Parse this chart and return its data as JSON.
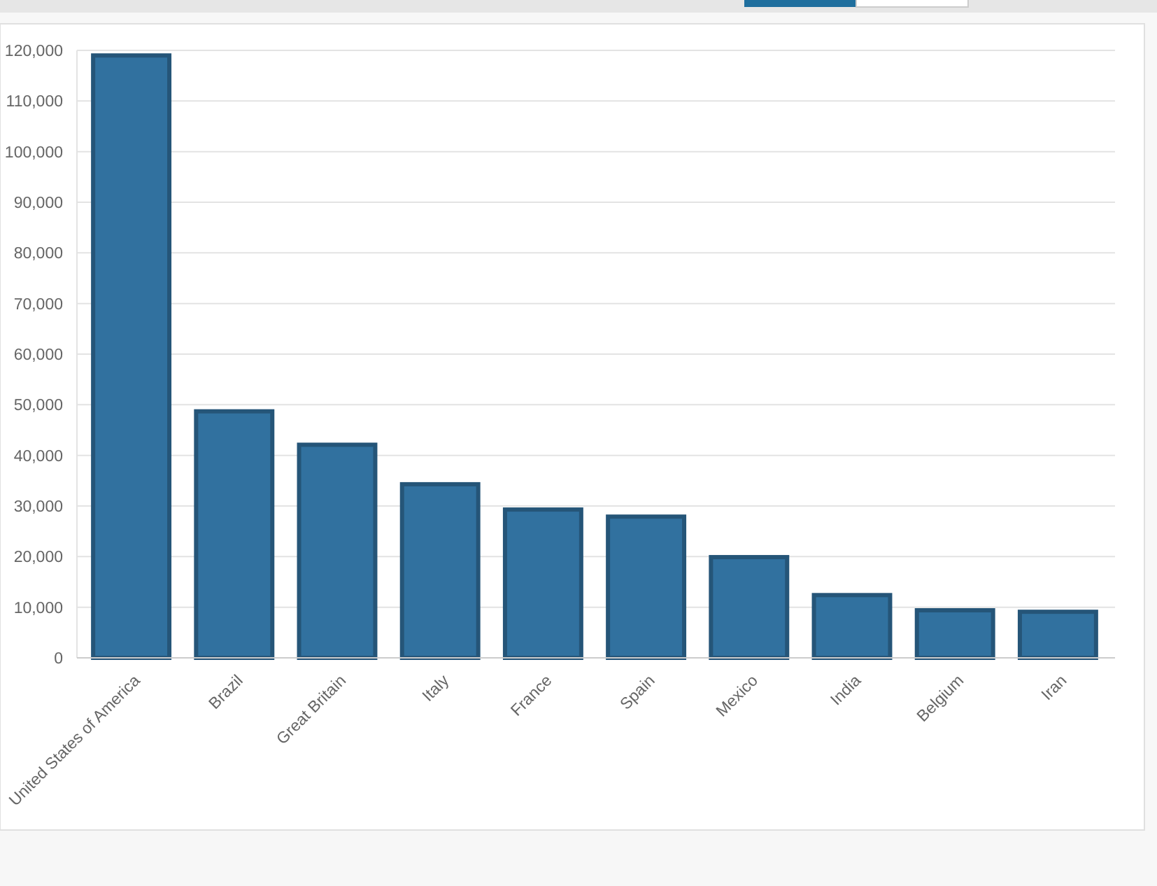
{
  "chart_data": {
    "type": "bar",
    "categories": [
      "United States of America",
      "Brazil",
      "Great Britain",
      "Italy",
      "France",
      "Spain",
      "Mexico",
      "India",
      "Belgium",
      "Iran"
    ],
    "values": [
      119000,
      48700,
      42100,
      34300,
      29300,
      27900,
      19900,
      12400,
      9400,
      9100
    ],
    "color": "#31719f",
    "ylim": [
      0,
      120000
    ],
    "yticks": [
      {
        "value": 0,
        "label": "0"
      },
      {
        "value": 10000,
        "label": "10,000"
      },
      {
        "value": 20000,
        "label": "20,000"
      },
      {
        "value": 30000,
        "label": "30,000"
      },
      {
        "value": 40000,
        "label": "40,000"
      },
      {
        "value": 50000,
        "label": "50,000"
      },
      {
        "value": 60000,
        "label": "60,000"
      },
      {
        "value": 70000,
        "label": "70,000"
      },
      {
        "value": 80000,
        "label": "80,000"
      },
      {
        "value": 90000,
        "label": "90,000"
      },
      {
        "value": 100000,
        "label": "100,000"
      },
      {
        "value": 110000,
        "label": "110,000"
      },
      {
        "value": 120000,
        "label": "120,000"
      }
    ],
    "grid": "y"
  }
}
